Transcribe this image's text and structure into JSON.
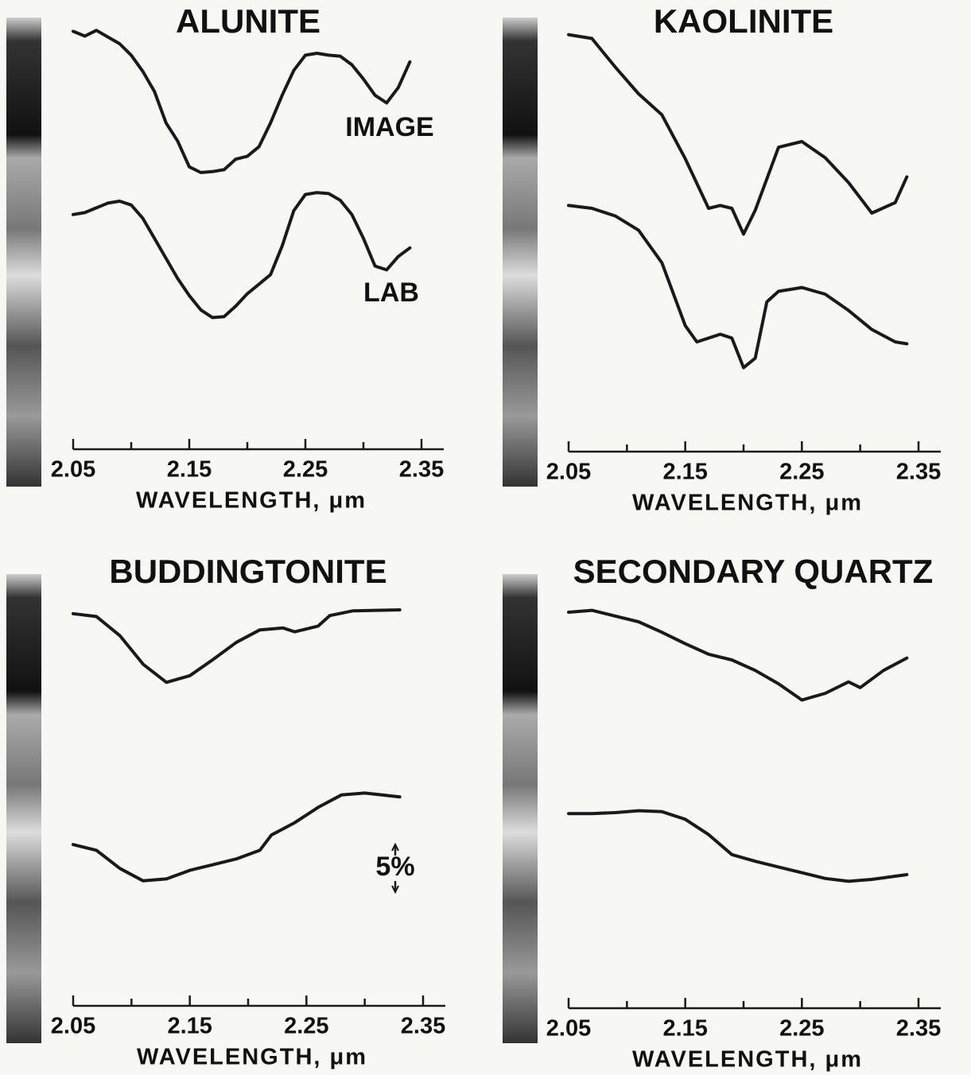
{
  "chart_data": [
    {
      "type": "line",
      "title": "ALUNITE",
      "xlabel": "WAVELENGTH, μm",
      "xlim": [
        2.05,
        2.35
      ],
      "xticks": [
        2.05,
        2.15,
        2.25,
        2.35
      ],
      "xminorticks": [
        2.1,
        2.2,
        2.3
      ],
      "ylim": [
        0,
        45
      ],
      "series": [
        {
          "name": "IMAGE",
          "color": "#1a1a1a",
          "x": [
            2.05,
            2.06,
            2.07,
            2.08,
            2.09,
            2.1,
            2.11,
            2.12,
            2.13,
            2.14,
            2.15,
            2.16,
            2.17,
            2.18,
            2.19,
            2.2,
            2.21,
            2.22,
            2.23,
            2.24,
            2.25,
            2.26,
            2.27,
            2.28,
            2.29,
            2.3,
            2.31,
            2.32,
            2.33,
            2.34
          ],
          "values": [
            43.8,
            43.3,
            43.9,
            43.2,
            42.5,
            41.3,
            39.6,
            37.5,
            34.2,
            32.3,
            29.6,
            29.0,
            29.1,
            29.3,
            30.4,
            30.7,
            31.7,
            34.2,
            37.1,
            39.7,
            41.3,
            41.5,
            41.3,
            41.2,
            40.3,
            38.8,
            37.1,
            36.3,
            37.9,
            40.6
          ]
        },
        {
          "name": "LAB",
          "color": "#1a1a1a",
          "x": [
            2.05,
            2.06,
            2.07,
            2.08,
            2.09,
            2.1,
            2.11,
            2.12,
            2.13,
            2.14,
            2.15,
            2.16,
            2.17,
            2.18,
            2.19,
            2.2,
            2.21,
            2.22,
            2.23,
            2.24,
            2.25,
            2.26,
            2.27,
            2.28,
            2.29,
            2.3,
            2.31,
            2.32,
            2.33,
            2.34
          ],
          "values": [
            24.6,
            24.8,
            25.3,
            25.8,
            26.0,
            25.6,
            24.2,
            22.1,
            20.0,
            17.9,
            16.1,
            14.6,
            13.8,
            13.9,
            15.0,
            16.3,
            17.3,
            18.3,
            21.3,
            25.0,
            26.7,
            26.9,
            26.8,
            26.1,
            24.6,
            22.1,
            19.2,
            18.8,
            20.2,
            21.1
          ]
        }
      ]
    },
    {
      "type": "line",
      "title": "KAOLINITE",
      "xlabel": "WAVELENGTH, μm",
      "xlim": [
        2.05,
        2.35
      ],
      "xticks": [
        2.05,
        2.15,
        2.25,
        2.35
      ],
      "xminorticks": [
        2.1,
        2.2,
        2.3
      ],
      "ylim": [
        0,
        45
      ],
      "series": [
        {
          "color": "#1a1a1a",
          "x": [
            2.05,
            2.07,
            2.09,
            2.11,
            2.13,
            2.15,
            2.17,
            2.18,
            2.19,
            2.2,
            2.21,
            2.23,
            2.25,
            2.27,
            2.29,
            2.31,
            2.33,
            2.34
          ],
          "values": [
            43.7,
            43.3,
            40.3,
            37.5,
            35.3,
            30.7,
            25.5,
            25.8,
            25.5,
            22.8,
            25.3,
            31.9,
            32.5,
            30.8,
            28.2,
            25.0,
            26.1,
            28.8
          ]
        },
        {
          "color": "#1a1a1a",
          "x": [
            2.05,
            2.07,
            2.09,
            2.11,
            2.13,
            2.15,
            2.16,
            2.18,
            2.19,
            2.2,
            2.21,
            2.22,
            2.23,
            2.25,
            2.27,
            2.29,
            2.31,
            2.33,
            2.34
          ],
          "values": [
            25.8,
            25.5,
            24.7,
            23.2,
            19.8,
            13.2,
            11.5,
            12.3,
            11.9,
            8.8,
            9.8,
            15.7,
            16.8,
            17.2,
            16.5,
            14.8,
            12.8,
            11.5,
            11.3
          ]
        }
      ]
    },
    {
      "type": "line",
      "title": "BUDDINGTONITE",
      "xlabel": "WAVELENGTH, μm",
      "xlim": [
        2.05,
        2.35
      ],
      "xticks": [
        2.05,
        2.15,
        2.25,
        2.35
      ],
      "xminorticks": [
        2.1,
        2.2,
        2.3
      ],
      "ylim": [
        0,
        45
      ],
      "scale_bar": {
        "value": 5,
        "label": "5%"
      },
      "series": [
        {
          "color": "#1a1a1a",
          "x": [
            2.05,
            2.07,
            2.09,
            2.11,
            2.13,
            2.15,
            2.17,
            2.19,
            2.21,
            2.23,
            2.24,
            2.26,
            2.27,
            2.29,
            2.33
          ],
          "values": [
            41.1,
            40.8,
            38.8,
            35.8,
            33.9,
            34.6,
            36.3,
            38.1,
            39.4,
            39.6,
            39.2,
            39.8,
            40.9,
            41.4,
            41.5
          ]
        },
        {
          "color": "#1a1a1a",
          "x": [
            2.05,
            2.07,
            2.09,
            2.11,
            2.13,
            2.15,
            2.17,
            2.19,
            2.21,
            2.22,
            2.24,
            2.26,
            2.28,
            2.3,
            2.33
          ],
          "values": [
            16.9,
            16.3,
            14.4,
            13.1,
            13.3,
            14.2,
            14.8,
            15.4,
            16.3,
            17.9,
            19.2,
            20.8,
            22.1,
            22.3,
            21.9
          ]
        }
      ]
    },
    {
      "type": "line",
      "title": "SECONDARY QUARTZ",
      "xlabel": "WAVELENGTH, μm",
      "xlim": [
        2.05,
        2.35
      ],
      "xticks": [
        2.05,
        2.15,
        2.25,
        2.35
      ],
      "xminorticks": [
        2.1,
        2.2,
        2.3
      ],
      "ylim": [
        0,
        45
      ],
      "series": [
        {
          "color": "#1a1a1a",
          "x": [
            2.05,
            2.07,
            2.09,
            2.11,
            2.13,
            2.15,
            2.17,
            2.19,
            2.21,
            2.23,
            2.25,
            2.27,
            2.29,
            2.3,
            2.32,
            2.34
          ],
          "values": [
            41.5,
            41.7,
            41.1,
            40.5,
            39.4,
            38.2,
            37.1,
            36.5,
            35.4,
            34.0,
            32.3,
            33.0,
            34.2,
            33.6,
            35.4,
            36.7
          ]
        },
        {
          "color": "#1a1a1a",
          "x": [
            2.05,
            2.07,
            2.09,
            2.11,
            2.13,
            2.15,
            2.17,
            2.19,
            2.21,
            2.23,
            2.25,
            2.27,
            2.29,
            2.31,
            2.34
          ],
          "values": [
            20.4,
            20.4,
            20.5,
            20.7,
            20.6,
            19.8,
            18.2,
            16.1,
            15.4,
            14.8,
            14.2,
            13.6,
            13.3,
            13.5,
            14.0
          ]
        }
      ]
    }
  ]
}
